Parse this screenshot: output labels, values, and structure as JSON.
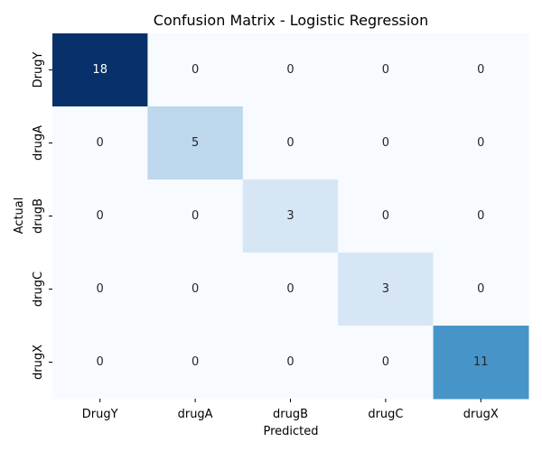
{
  "chart_data": {
    "type": "heatmap",
    "title": "Confusion Matrix - Logistic Regression",
    "xlabel": "Predicted",
    "ylabel": "Actual",
    "x_categories": [
      "DrugY",
      "drugA",
      "drugB",
      "drugC",
      "drugX"
    ],
    "y_categories": [
      "DrugY",
      "drugA",
      "drugB",
      "drugC",
      "drugX"
    ],
    "matrix": [
      [
        18,
        0,
        0,
        0,
        0
      ],
      [
        0,
        5,
        0,
        0,
        0
      ],
      [
        0,
        0,
        3,
        0,
        0
      ],
      [
        0,
        0,
        0,
        3,
        0
      ],
      [
        0,
        0,
        0,
        0,
        11
      ]
    ],
    "value_range": [
      0,
      18
    ],
    "colormap": "Blues",
    "color_low": "#f7fbff",
    "color_high": "#08306b",
    "colorbar": false,
    "annotations": true
  }
}
